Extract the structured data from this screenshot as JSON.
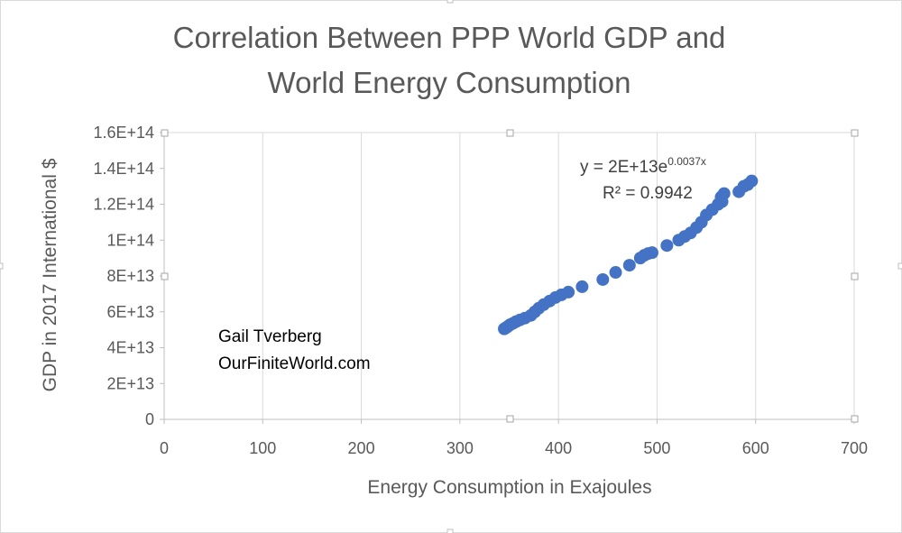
{
  "chart_data": {
    "type": "scatter",
    "title_line1": "Correlation Between PPP World GDP and",
    "title_line2": "World Energy Consumption",
    "xlabel": "Energy Consumption in Exajoules",
    "ylabel": "GDP in 2017 International $",
    "xlim": [
      0,
      700
    ],
    "ylim": [
      0,
      160000000000000.0
    ],
    "x_ticks": [
      0,
      100,
      200,
      300,
      400,
      500,
      600,
      700
    ],
    "x_tick_labels": [
      "0",
      "100",
      "200",
      "300",
      "400",
      "500",
      "600",
      "700"
    ],
    "y_ticks": [
      0,
      20000000000000.0,
      40000000000000.0,
      60000000000000.0,
      80000000000000.0,
      100000000000000.0,
      120000000000000.0,
      140000000000000.0,
      160000000000000.0
    ],
    "y_tick_labels": [
      "0",
      "2E+13",
      "4E+13",
      "6E+13",
      "8E+13",
      "1E+14",
      "1.2E+14",
      "1.4E+14",
      "1.6E+14"
    ],
    "grid": {
      "vertical": true,
      "horizontal": false
    },
    "marker_color": "#4472C4",
    "trendline": {
      "equation_main": "y = 2E+13e",
      "equation_exponent": "0.0037x",
      "r_squared": "R² = 0.9942"
    },
    "annotations": [
      "Gail Tverberg",
      "OurFiniteWorld.com"
    ],
    "points": [
      {
        "x": 345,
        "y": 50500000000000.0
      },
      {
        "x": 347,
        "y": 51200000000000.0
      },
      {
        "x": 349,
        "y": 52000000000000.0
      },
      {
        "x": 351,
        "y": 52800000000000.0
      },
      {
        "x": 354,
        "y": 53600000000000.0
      },
      {
        "x": 357,
        "y": 54500000000000.0
      },
      {
        "x": 361,
        "y": 55500000000000.0
      },
      {
        "x": 366,
        "y": 56500000000000.0
      },
      {
        "x": 372,
        "y": 58000000000000.0
      },
      {
        "x": 376,
        "y": 60000000000000.0
      },
      {
        "x": 380,
        "y": 62000000000000.0
      },
      {
        "x": 385,
        "y": 64000000000000.0
      },
      {
        "x": 391,
        "y": 66000000000000.0
      },
      {
        "x": 397,
        "y": 68000000000000.0
      },
      {
        "x": 403,
        "y": 69500000000000.0
      },
      {
        "x": 410,
        "y": 71000000000000.0
      },
      {
        "x": 424,
        "y": 74000000000000.0
      },
      {
        "x": 445,
        "y": 78000000000000.0
      },
      {
        "x": 458,
        "y": 82000000000000.0
      },
      {
        "x": 472,
        "y": 86000000000000.0
      },
      {
        "x": 483,
        "y": 90000000000000.0
      },
      {
        "x": 487,
        "y": 91500000000000.0
      },
      {
        "x": 491,
        "y": 92500000000000.0
      },
      {
        "x": 495,
        "y": 93000000000000.0
      },
      {
        "x": 510,
        "y": 97000000000000.0
      },
      {
        "x": 522,
        "y": 100000000000000.0
      },
      {
        "x": 528,
        "y": 102000000000000.0
      },
      {
        "x": 534,
        "y": 104000000000000.0
      },
      {
        "x": 540,
        "y": 107000000000000.0
      },
      {
        "x": 545,
        "y": 110000000000000.0
      },
      {
        "x": 550,
        "y": 114000000000000.0
      },
      {
        "x": 556,
        "y": 117000000000000.0
      },
      {
        "x": 562,
        "y": 120000000000000.0
      },
      {
        "x": 565,
        "y": 124000000000000.0
      },
      {
        "x": 568,
        "y": 126000000000000.0
      },
      {
        "x": 566,
        "y": 121500000000000.0
      },
      {
        "x": 583,
        "y": 127000000000000.0
      },
      {
        "x": 588,
        "y": 130000000000000.0
      },
      {
        "x": 592,
        "y": 131000000000000.0
      },
      {
        "x": 596,
        "y": 133000000000000.0
      }
    ]
  }
}
